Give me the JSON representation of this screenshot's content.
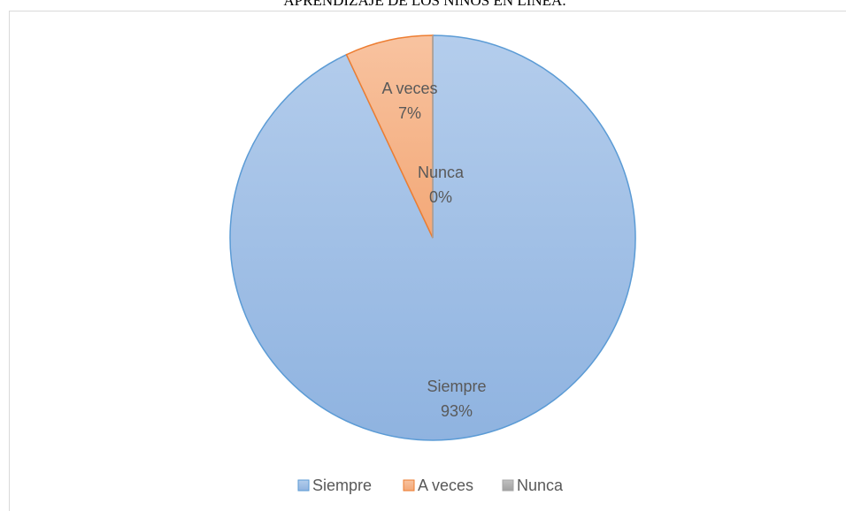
{
  "chart_data": {
    "type": "pie",
    "title": "APRENDIZAJE DE LOS NIÑOS EN LÍNEA.",
    "categories": [
      "Siempre",
      "A veces",
      "Nunca"
    ],
    "values": [
      93,
      7,
      0
    ],
    "value_labels": [
      "93%",
      "7%",
      "0%"
    ],
    "colors": [
      "#9dbde6",
      "#f4b183",
      "#a5a5a5"
    ],
    "edge_colors": [
      "#5b9bd5",
      "#ed7d31",
      "#a5a5a5"
    ],
    "legend": "bottom"
  }
}
